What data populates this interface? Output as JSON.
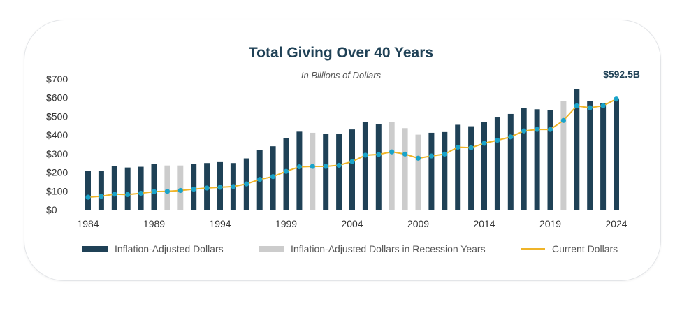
{
  "chart_data": {
    "type": "bar",
    "title": "Total Giving Over 40 Years",
    "subtitle": "In Billions of Dollars",
    "callout": "$592.5B",
    "ylim": [
      0,
      700
    ],
    "yticks": [
      "$0",
      "$100",
      "$200",
      "$300",
      "$400",
      "$500",
      "$600",
      "$700"
    ],
    "xtick_labels": [
      "1984",
      "1989",
      "1994",
      "1999",
      "2004",
      "2009",
      "2014",
      "2019",
      "2024"
    ],
    "years": [
      1984,
      1985,
      1986,
      1987,
      1988,
      1989,
      1990,
      1991,
      1992,
      1993,
      1994,
      1995,
      1996,
      1997,
      1998,
      1999,
      2000,
      2001,
      2002,
      2003,
      2004,
      2005,
      2006,
      2007,
      2008,
      2009,
      2010,
      2011,
      2012,
      2013,
      2014,
      2015,
      2016,
      2017,
      2018,
      2019,
      2020,
      2021,
      2022,
      2023,
      2024
    ],
    "recession_years": [
      1990,
      1991,
      2001,
      2007,
      2008,
      2009,
      2020
    ],
    "series": [
      {
        "name": "Inflation-Adjusted Dollars",
        "type": "bar",
        "values": [
          207,
          207,
          235,
          226,
          230,
          245,
          237,
          237,
          245,
          250,
          255,
          250,
          275,
          320,
          340,
          382,
          418,
          412,
          405,
          408,
          430,
          468,
          460,
          470,
          437,
          402,
          412,
          416,
          455,
          447,
          470,
          494,
          513,
          543,
          538,
          532,
          582,
          644,
          582,
          570,
          592.5
        ]
      },
      {
        "name": "Inflation-Adjusted Dollars in Recession Years",
        "type": "bar"
      },
      {
        "name": "Current Dollars",
        "type": "line",
        "values": [
          67,
          72,
          83,
          81,
          88,
          97,
          98,
          103,
          110,
          116,
          120,
          124,
          138,
          162,
          177,
          205,
          230,
          232,
          232,
          238,
          258,
          292,
          296,
          310,
          298,
          276,
          288,
          298,
          335,
          332,
          356,
          372,
          390,
          422,
          430,
          430,
          478,
          556,
          546,
          557,
          592.5
        ]
      }
    ],
    "colors": {
      "bar": "#1f4156",
      "recession_bar": "#cccccc",
      "line": "#efb429",
      "marker": "#1aa3c9",
      "text": "#1f4156"
    },
    "grid": false
  },
  "legend": {
    "bar_label": "Inflation-Adjusted Dollars",
    "recession_label": "Inflation-Adjusted Dollars in Recession Years",
    "line_label": "Current Dollars"
  }
}
